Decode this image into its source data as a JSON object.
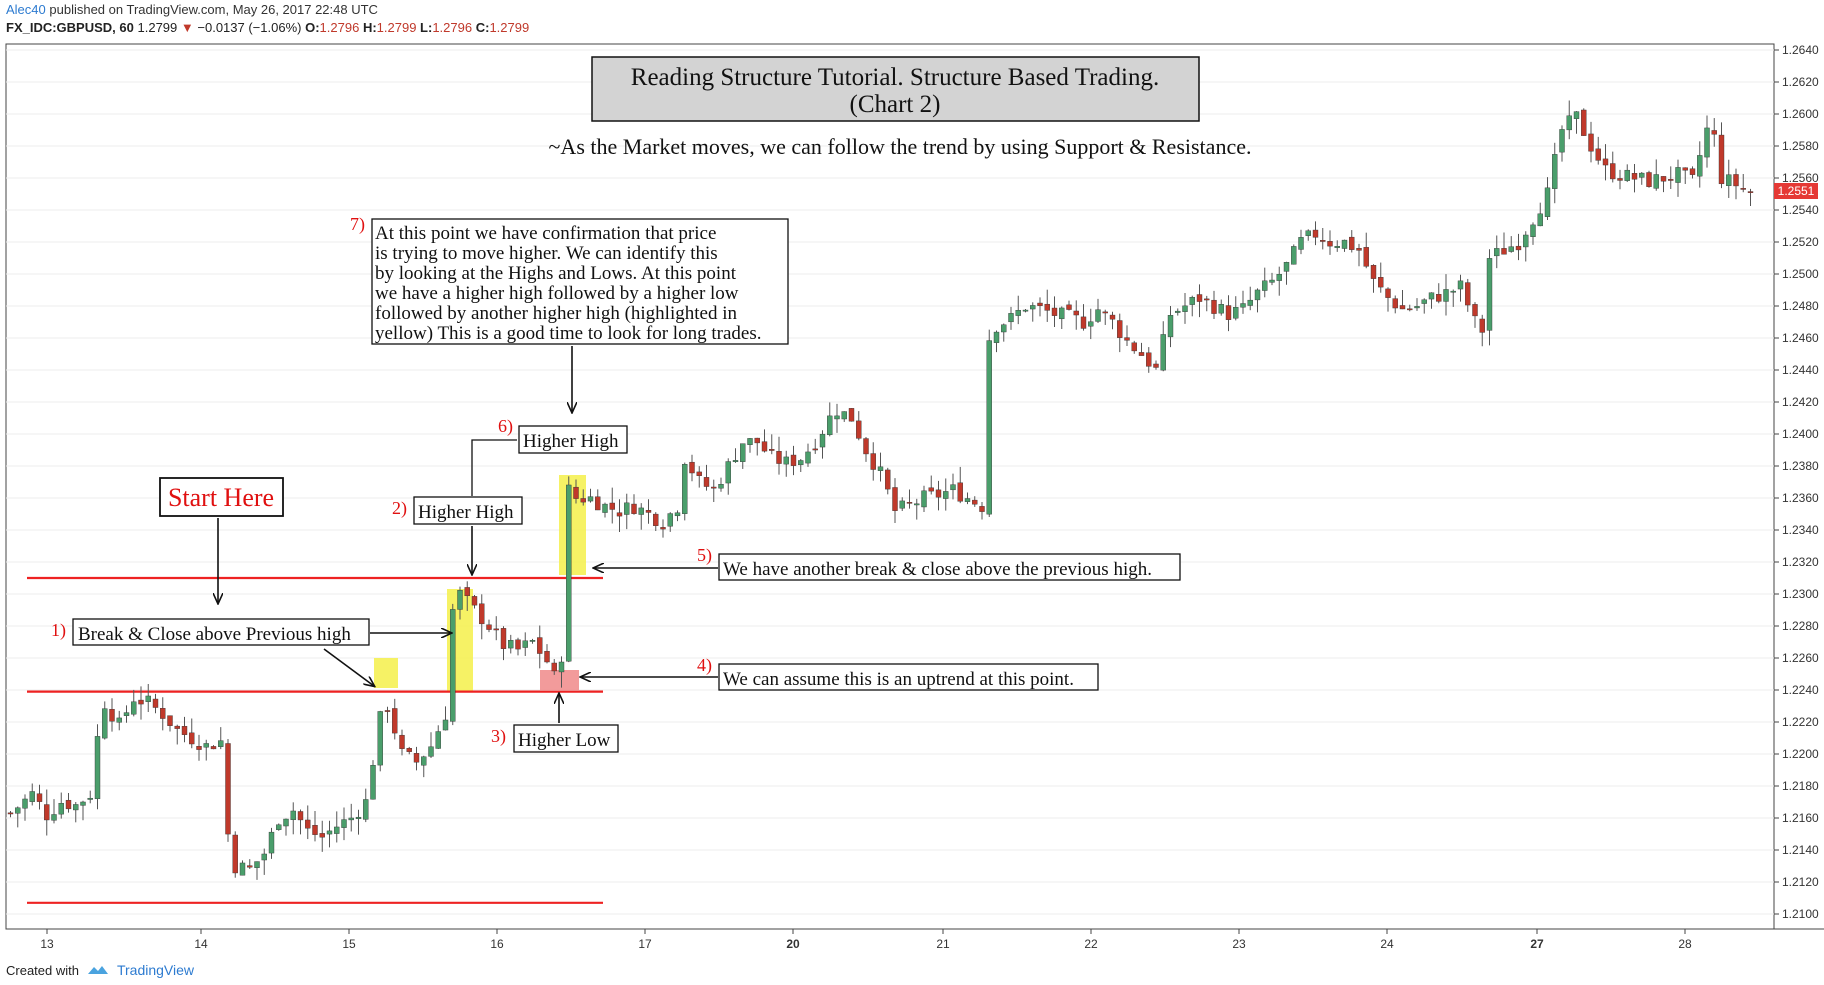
{
  "header": {
    "author": "Alec40",
    "published_text": "published on TradingView.com, May 26, 2017 22:48 UTC",
    "symbol": "FX_IDC:GBPUSD, 60",
    "last": "1.2799",
    "change_arrow": "▼",
    "change": "−0.0137 (−1.06%)",
    "o_label": "O:",
    "o_value": "1.2796",
    "h_label": "H:",
    "h_value": "1.2799",
    "l_label": "L:",
    "l_value": "1.2796",
    "c_label": "C:",
    "c_value": "1.2799"
  },
  "footer": {
    "created_with": "Created with",
    "brand": "TradingView"
  },
  "title": {
    "line1": "Reading Structure Tutorial. Structure Based Trading.",
    "line2": "(Chart 2)"
  },
  "subtitle": "~As the Market moves, we can follow the trend by using Support & Resistance.",
  "annotations": {
    "start_here": "Start Here",
    "step1_num": "1)",
    "step1_text": "Break & Close above Previous high",
    "step2_num": "2)",
    "step2_text": "Higher High",
    "step3_num": "3)",
    "step3_text": "Higher Low",
    "step4_num": "4)",
    "step4_text": "We can assume this is an uptrend at this point.",
    "step5_num": "5)",
    "step5_text": "We have another break & close above the previous high.",
    "step6_num": "6)",
    "step6_text": "Higher High",
    "step7_num": "7)",
    "step7_lines": [
      "At this point we have confirmation that price",
      "is trying to move higher. We can identify this",
      "by looking at the Highs and Lows. At this point",
      "we have a higher high followed by a higher low",
      "followed by another higher high (highlighted in",
      "yellow) This is a good time to look for long trades."
    ]
  },
  "colors": {
    "up": "#4a9e6b",
    "down": "#c0392b",
    "level_line": "#ee2222",
    "highlight_yellow": "#f5f04a",
    "highlight_red": "#f08a8a",
    "price_tag": "#e53935",
    "grid": "#eeeeee",
    "annotation_red": "#e01010"
  },
  "chart_data": {
    "type": "candlestick",
    "instrument": "FX_IDC:GBPUSD",
    "timeframe": "60",
    "y_axis_ticks": [
      "1.2640",
      "1.2620",
      "1.2600",
      "1.2580",
      "1.2560",
      "1.2540",
      "1.2520",
      "1.2500",
      "1.2480",
      "1.2460",
      "1.2440",
      "1.2420",
      "1.2400",
      "1.2380",
      "1.2360",
      "1.2340",
      "1.2320",
      "1.2300",
      "1.2280",
      "1.2260",
      "1.2240",
      "1.2220",
      "1.2200",
      "1.2180",
      "1.2160",
      "1.2140",
      "1.2120",
      "1.2100"
    ],
    "x_axis_ticks": [
      "13",
      "14",
      "15",
      "16",
      "17",
      "20",
      "21",
      "22",
      "23",
      "24",
      "27",
      "28"
    ],
    "last_price_label": "1.2551",
    "horizontal_levels": [
      1.231,
      1.2239,
      1.2107
    ],
    "close_path": [
      [
        0,
        1.2163
      ],
      [
        3,
        1.2175
      ],
      [
        5,
        1.2162
      ],
      [
        7,
        1.217
      ],
      [
        9,
        1.2168
      ],
      [
        11,
        1.2175
      ],
      [
        12,
        1.221
      ],
      [
        13,
        1.2232
      ],
      [
        15,
        1.2218
      ],
      [
        17,
        1.2235
      ],
      [
        19,
        1.2232
      ],
      [
        21,
        1.2225
      ],
      [
        23,
        1.2215
      ],
      [
        25,
        1.221
      ],
      [
        27,
        1.2205
      ],
      [
        29,
        1.2208
      ],
      [
        30,
        1.215
      ],
      [
        31,
        1.213
      ],
      [
        33,
        1.2128
      ],
      [
        35,
        1.2138
      ],
      [
        37,
        1.216
      ],
      [
        39,
        1.2165
      ],
      [
        41,
        1.2152
      ],
      [
        43,
        1.2148
      ],
      [
        45,
        1.2155
      ],
      [
        47,
        1.216
      ],
      [
        49,
        1.217
      ],
      [
        51,
        1.2222
      ],
      [
        52,
        1.223
      ],
      [
        54,
        1.22
      ],
      [
        56,
        1.2195
      ],
      [
        58,
        1.2205
      ],
      [
        60,
        1.2225
      ],
      [
        61,
        1.229
      ],
      [
        62,
        1.23
      ],
      [
        64,
        1.229
      ],
      [
        66,
        1.228
      ],
      [
        68,
        1.2268
      ],
      [
        70,
        1.2265
      ],
      [
        72,
        1.227
      ],
      [
        74,
        1.2258
      ],
      [
        75,
        1.2248
      ],
      [
        76,
        1.2262
      ],
      [
        77,
        1.2365
      ],
      [
        78,
        1.236
      ],
      [
        80,
        1.236
      ],
      [
        82,
        1.2355
      ],
      [
        84,
        1.2352
      ],
      [
        86,
        1.2355
      ],
      [
        88,
        1.235
      ],
      [
        90,
        1.2345
      ],
      [
        92,
        1.2355
      ],
      [
        93,
        1.2385
      ],
      [
        95,
        1.237
      ],
      [
        97,
        1.2365
      ],
      [
        99,
        1.238
      ],
      [
        101,
        1.2395
      ],
      [
        103,
        1.2395
      ],
      [
        105,
        1.2385
      ],
      [
        107,
        1.2382
      ],
      [
        109,
        1.2385
      ],
      [
        111,
        1.2395
      ],
      [
        113,
        1.241
      ],
      [
        114,
        1.2415
      ],
      [
        116,
        1.241
      ],
      [
        118,
        1.239
      ],
      [
        120,
        1.2375
      ],
      [
        122,
        1.2352
      ],
      [
        124,
        1.2355
      ],
      [
        126,
        1.236
      ],
      [
        128,
        1.2362
      ],
      [
        130,
        1.2365
      ],
      [
        132,
        1.236
      ],
      [
        134,
        1.2355
      ],
      [
        135,
        1.246
      ],
      [
        136,
        1.2468
      ],
      [
        138,
        1.2472
      ],
      [
        140,
        1.248
      ],
      [
        142,
        1.2478
      ],
      [
        144,
        1.2475
      ],
      [
        146,
        1.2473
      ],
      [
        148,
        1.247
      ],
      [
        150,
        1.2478
      ],
      [
        152,
        1.247
      ],
      [
        154,
        1.2458
      ],
      [
        156,
        1.245
      ],
      [
        158,
        1.244
      ],
      [
        160,
        1.2475
      ],
      [
        162,
        1.248
      ],
      [
        164,
        1.2485
      ],
      [
        166,
        1.248
      ],
      [
        168,
        1.2475
      ],
      [
        170,
        1.2478
      ],
      [
        172,
        1.2488
      ],
      [
        174,
        1.2495
      ],
      [
        176,
        1.2505
      ],
      [
        178,
        1.252
      ],
      [
        180,
        1.2525
      ],
      [
        182,
        1.252
      ],
      [
        184,
        1.252
      ],
      [
        186,
        1.2515
      ],
      [
        188,
        1.2495
      ],
      [
        190,
        1.2485
      ],
      [
        192,
        1.2478
      ],
      [
        194,
        1.248
      ],
      [
        196,
        1.2485
      ],
      [
        198,
        1.2488
      ],
      [
        200,
        1.2492
      ],
      [
        202,
        1.247
      ],
      [
        203,
        1.2465
      ],
      [
        204,
        1.251
      ],
      [
        206,
        1.2515
      ],
      [
        208,
        1.252
      ],
      [
        210,
        1.2535
      ],
      [
        212,
        1.255
      ],
      [
        214,
        1.259
      ],
      [
        216,
        1.2598
      ],
      [
        218,
        1.258
      ],
      [
        220,
        1.2565
      ],
      [
        222,
        1.2562
      ],
      [
        224,
        1.256
      ],
      [
        226,
        1.2558
      ],
      [
        228,
        1.256
      ],
      [
        230,
        1.2562
      ],
      [
        232,
        1.2558
      ],
      [
        234,
        1.259
      ],
      [
        235,
        1.2585
      ],
      [
        236,
        1.256
      ],
      [
        238,
        1.2556
      ],
      [
        240,
        1.2551
      ]
    ]
  }
}
